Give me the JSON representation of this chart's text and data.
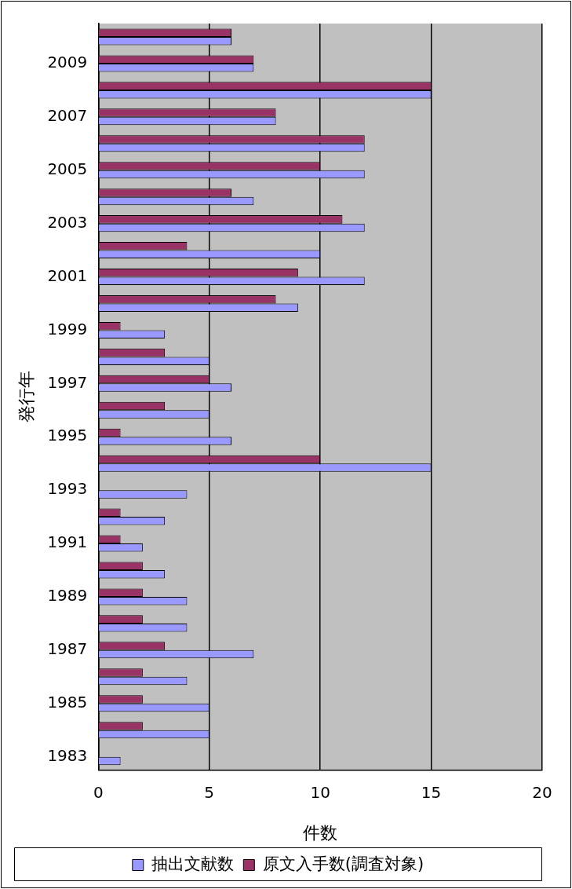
{
  "chart_data": {
    "type": "bar",
    "orientation": "horizontal",
    "xlabel": "件数",
    "ylabel": "発行年",
    "categories": [
      null,
      "2009",
      null,
      "2007",
      null,
      "2005",
      null,
      "2003",
      null,
      "2001",
      null,
      "1999",
      null,
      "1997",
      null,
      "1995",
      null,
      "1993",
      null,
      "1991",
      null,
      "1989",
      null,
      "1987",
      null,
      "1985",
      null,
      "1983"
    ],
    "series": [
      {
        "name": "抽出文献数",
        "color": "#9999ff",
        "values": [
          6,
          7,
          15,
          8,
          12,
          12,
          7,
          12,
          10,
          12,
          9,
          3,
          5,
          6,
          5,
          6,
          15,
          4,
          3,
          2,
          3,
          4,
          4,
          7,
          4,
          5,
          5,
          1
        ]
      },
      {
        "name": "原文入手数(調査対象)",
        "color": "#993366",
        "values": [
          6,
          7,
          15,
          8,
          12,
          10,
          6,
          11,
          4,
          9,
          8,
          1,
          3,
          5,
          3,
          1,
          10,
          0,
          1,
          1,
          2,
          2,
          2,
          3,
          2,
          2,
          2,
          0
        ]
      }
    ],
    "xlim": [
      0,
      20
    ],
    "xticks": [
      0,
      5,
      10,
      15,
      20
    ],
    "grid": "x",
    "legend": "bottom"
  }
}
